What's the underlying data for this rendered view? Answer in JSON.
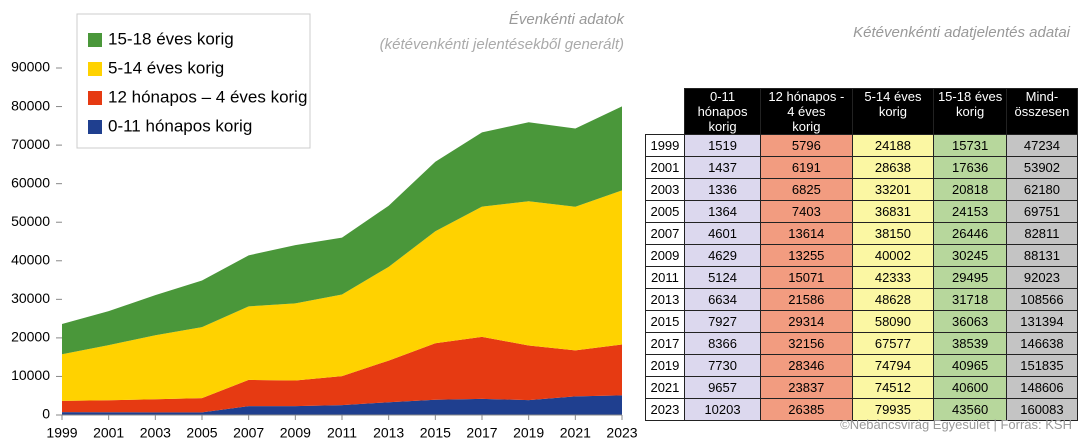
{
  "chart_data": {
    "type": "stacked-area",
    "title": "Évenkénti adatok",
    "subtitle": "(kétévenkénti jelentésekből generált)",
    "x": [
      1999,
      2001,
      2003,
      2005,
      2007,
      2009,
      2011,
      2013,
      2015,
      2017,
      2019,
      2021,
      2023
    ],
    "xlim": [
      1999,
      2023
    ],
    "xticks": [
      1999,
      2001,
      2003,
      2005,
      2007,
      2009,
      2011,
      2013,
      2015,
      2017,
      2019,
      2021,
      2023
    ],
    "ylim": [
      0,
      90000
    ],
    "yticks": [
      0,
      10000,
      20000,
      30000,
      40000,
      50000,
      60000,
      70000,
      80000,
      90000
    ],
    "legend": "top-left",
    "series": [
      {
        "name": "0-11 hónapos korig",
        "color": "#1f3f8f",
        "values": [
          759.5,
          718.5,
          668,
          682,
          2300.5,
          2314.5,
          2562,
          3317,
          3963.5,
          4183,
          3865,
          4828.5,
          5101.5
        ]
      },
      {
        "name": "12 hónapos – 4 éves korig",
        "color": "#e63a12",
        "values": [
          2898,
          3095.5,
          3412.5,
          3701.5,
          6807,
          6627.5,
          7535.5,
          10793,
          14657,
          16078,
          14173,
          11918.5,
          13192.5
        ]
      },
      {
        "name": "5-14 éves korig",
        "color": "#ffd200",
        "values": [
          12094,
          14319,
          16600.5,
          18415.5,
          19075,
          20001,
          21166.5,
          24314,
          29045,
          33788.5,
          37397,
          37256,
          39967.5
        ]
      },
      {
        "name": "15-18 éves korig",
        "color": "#4a973a",
        "values": [
          7865.5,
          8818,
          10409,
          12076.5,
          13223,
          15122.5,
          14747.5,
          15859,
          18031.5,
          19269.5,
          20482.5,
          20300,
          21780
        ]
      }
    ]
  },
  "table": {
    "title": "Kétévenkénti adatjelentés adatai",
    "header": [
      "0-11\nhónapos\nkorig",
      "12 hónapos -\n4 éves\nkorig",
      "5-14 éves\nkorig",
      "15-18 éves\nkorig",
      "Mind-\nösszesen"
    ],
    "rows": [
      [
        "1999",
        1519,
        5796,
        24188,
        15731,
        47234
      ],
      [
        "2001",
        1437,
        6191,
        28638,
        17636,
        53902
      ],
      [
        "2003",
        1336,
        6825,
        33201,
        20818,
        62180
      ],
      [
        "2005",
        1364,
        7403,
        36831,
        24153,
        69751
      ],
      [
        "2007",
        4601,
        13614,
        38150,
        26446,
        82811
      ],
      [
        "2009",
        4629,
        13255,
        40002,
        30245,
        88131
      ],
      [
        "2011",
        5124,
        15071,
        42333,
        29495,
        92023
      ],
      [
        "2013",
        6634,
        21586,
        48628,
        31718,
        108566
      ],
      [
        "2015",
        7927,
        29314,
        58090,
        36063,
        131394
      ],
      [
        "2017",
        8366,
        32156,
        67577,
        38539,
        146638
      ],
      [
        "2019",
        7730,
        28346,
        74794,
        40965,
        151835
      ],
      [
        "2021",
        9657,
        23837,
        74512,
        40600,
        148606
      ],
      [
        "2023",
        10203,
        26385,
        79935,
        43560,
        160083
      ]
    ]
  },
  "footer": "©Nebáncsvirág Egyesület | Forrás: KSH"
}
